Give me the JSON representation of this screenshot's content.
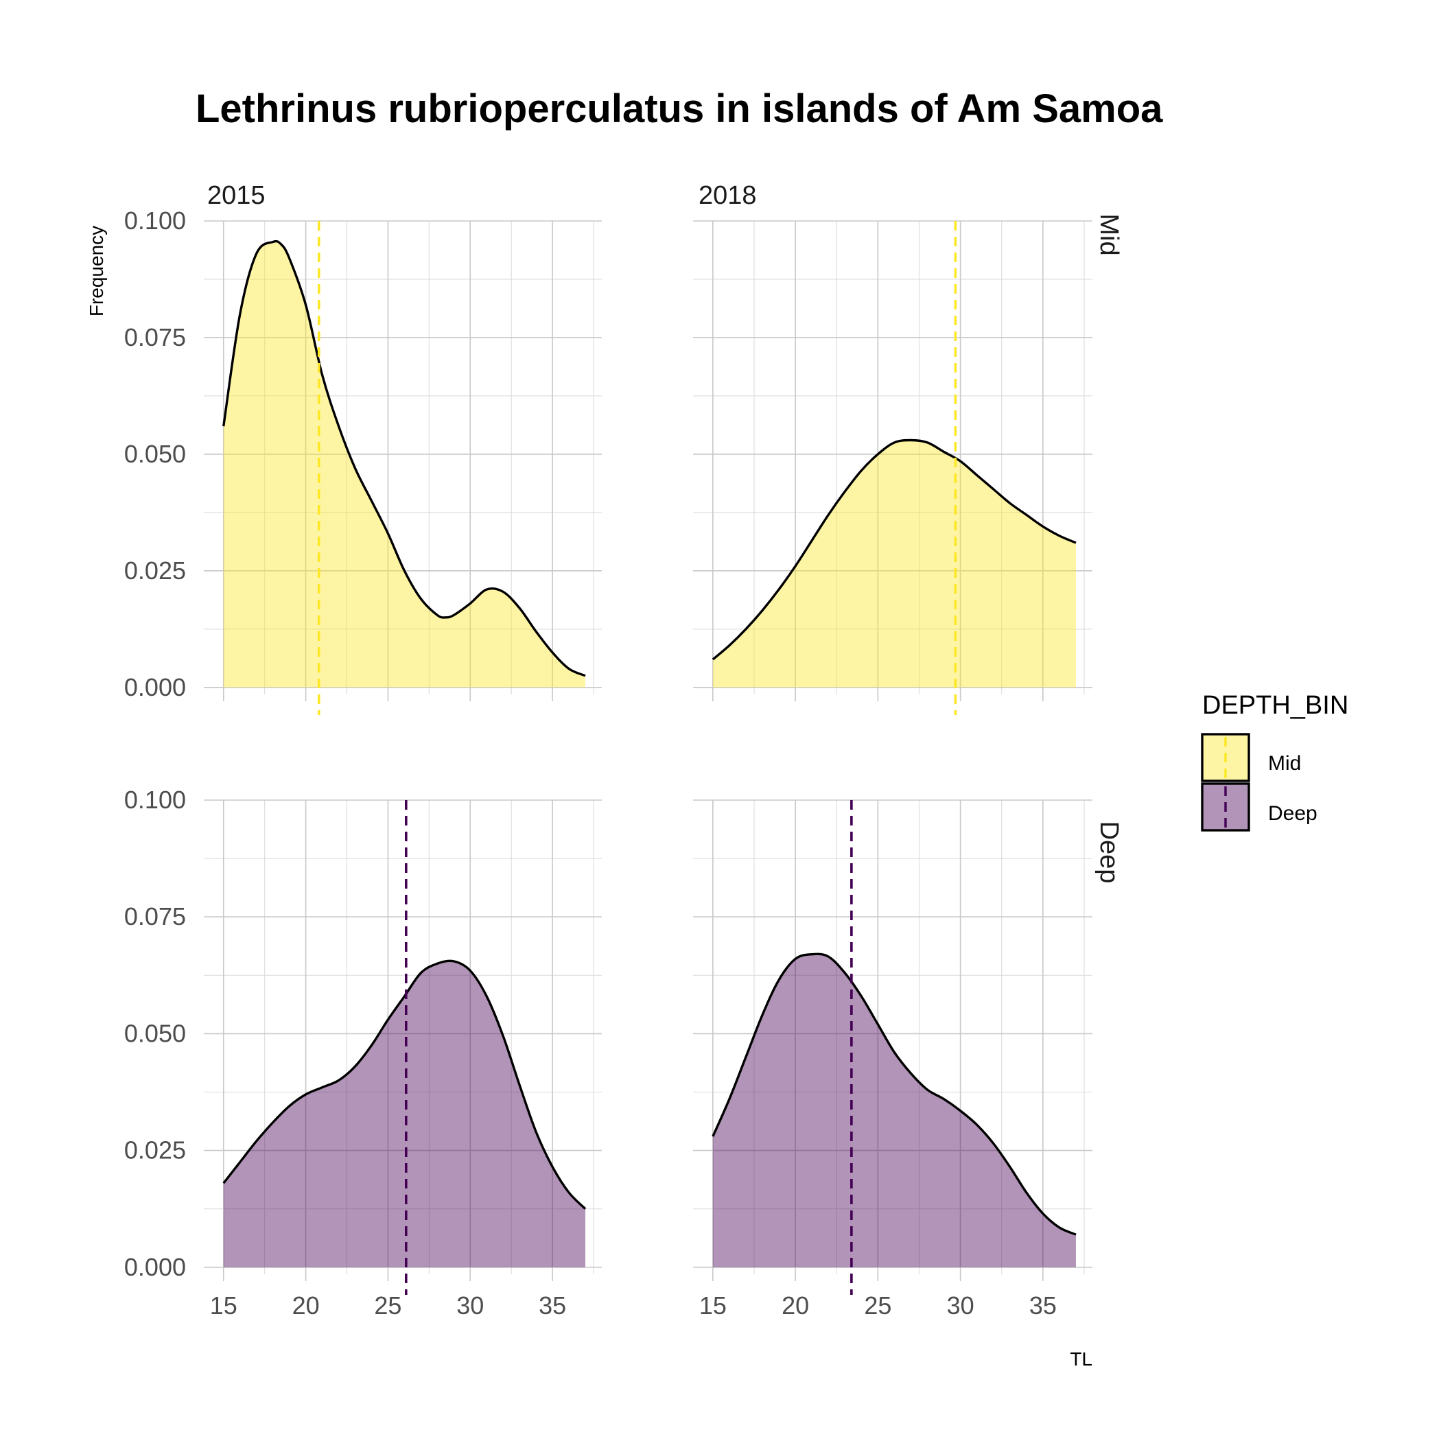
{
  "chart_data": {
    "type": "area",
    "title": "Lethrinus rubrioperculatus in islands of Am Samoa",
    "xlabel": "TL",
    "ylabel": "Frequency",
    "xlim": [
      15,
      37
    ],
    "ylim": [
      0,
      0.1
    ],
    "x_ticks": [
      15,
      20,
      25,
      30,
      35
    ],
    "y_ticks": [
      "0.000",
      "0.025",
      "0.050",
      "0.075",
      "0.100"
    ],
    "col_facets": [
      "2015",
      "2018"
    ],
    "row_facets": [
      "Mid",
      "Deep"
    ],
    "grid": true,
    "legend": {
      "title": "DEPTH_BIN",
      "position": "right",
      "entries": [
        {
          "label": "Mid",
          "fill": "#FDE725",
          "line": "#FDE725"
        },
        {
          "label": "Deep",
          "fill": "#440154",
          "line": "#440154"
        }
      ]
    },
    "panels": [
      {
        "year": "2015",
        "depth": "Mid",
        "mean": 20.8,
        "x": [
          15,
          16,
          17,
          18,
          18.5,
          19,
          20,
          21,
          22,
          23,
          24,
          25,
          26,
          27,
          28,
          28.5,
          29,
          30,
          31,
          32,
          33,
          34,
          35,
          36,
          37
        ],
        "y": [
          0.056,
          0.08,
          0.093,
          0.0955,
          0.095,
          0.092,
          0.082,
          0.067,
          0.056,
          0.047,
          0.04,
          0.033,
          0.025,
          0.019,
          0.0155,
          0.015,
          0.0155,
          0.018,
          0.021,
          0.0205,
          0.017,
          0.012,
          0.0075,
          0.004,
          0.0025
        ]
      },
      {
        "year": "2018",
        "depth": "Mid",
        "mean": 29.7,
        "x": [
          15,
          16,
          17,
          18,
          19,
          20,
          21,
          22,
          23,
          24,
          25,
          26,
          27,
          28,
          29,
          30,
          31,
          32,
          33,
          34,
          35,
          36,
          37
        ],
        "y": [
          0.006,
          0.009,
          0.0125,
          0.0165,
          0.021,
          0.026,
          0.0315,
          0.037,
          0.042,
          0.0465,
          0.05,
          0.0525,
          0.053,
          0.0525,
          0.0505,
          0.0485,
          0.0455,
          0.0425,
          0.0395,
          0.037,
          0.0345,
          0.0325,
          0.031
        ]
      },
      {
        "year": "2015",
        "depth": "Deep",
        "mean": 26.1,
        "x": [
          15,
          16,
          17,
          18,
          19,
          20,
          21,
          22,
          23,
          24,
          25,
          26,
          27,
          28,
          29,
          30,
          31,
          32,
          33,
          34,
          35,
          36,
          37
        ],
        "y": [
          0.018,
          0.0225,
          0.027,
          0.031,
          0.0345,
          0.037,
          0.0385,
          0.04,
          0.043,
          0.0475,
          0.053,
          0.058,
          0.063,
          0.065,
          0.0655,
          0.0635,
          0.058,
          0.0495,
          0.039,
          0.029,
          0.0215,
          0.016,
          0.0125
        ]
      },
      {
        "year": "2018",
        "depth": "Deep",
        "mean": 23.4,
        "x": [
          15,
          16,
          17,
          18,
          19,
          20,
          21,
          22,
          23,
          24,
          25,
          26,
          27,
          28,
          29,
          30,
          31,
          32,
          33,
          34,
          35,
          36,
          37
        ],
        "y": [
          0.028,
          0.036,
          0.045,
          0.054,
          0.0615,
          0.066,
          0.067,
          0.0665,
          0.063,
          0.058,
          0.052,
          0.046,
          0.0415,
          0.038,
          0.036,
          0.0335,
          0.0305,
          0.0265,
          0.0215,
          0.016,
          0.0115,
          0.0085,
          0.007
        ]
      }
    ]
  }
}
